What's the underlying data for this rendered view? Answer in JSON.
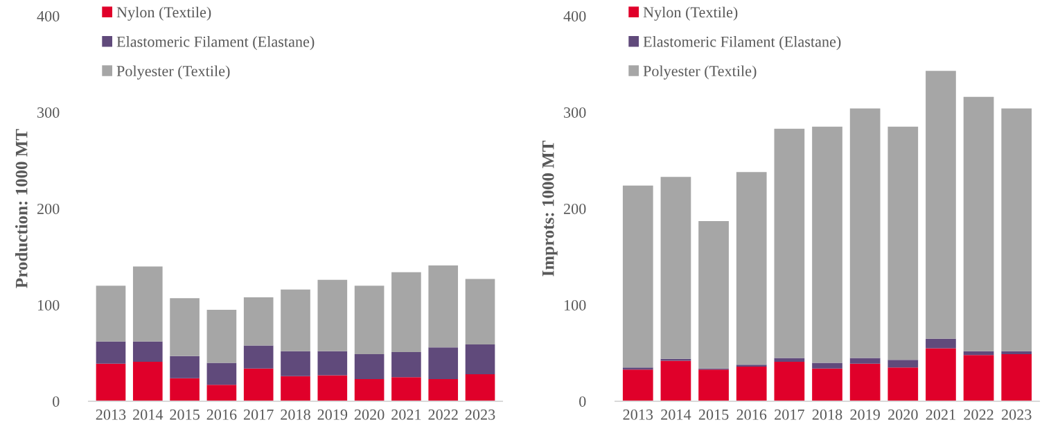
{
  "chart_data": [
    {
      "type": "bar",
      "stacked": true,
      "ylabel": "Production: 1000 MT",
      "categories": [
        "2013",
        "2014",
        "2015",
        "2016",
        "2017",
        "2018",
        "2019",
        "2020",
        "2021",
        "2022",
        "2023"
      ],
      "ylim": [
        0,
        400
      ],
      "yticks": [
        0,
        100,
        200,
        300,
        400
      ],
      "legend": "top left",
      "grid": false,
      "series": [
        {
          "name": "Nylon (Textile)",
          "color": "#e0002a",
          "values": [
            39,
            41,
            24,
            17,
            34,
            26,
            27,
            23,
            25,
            23,
            28
          ]
        },
        {
          "name": "Elastomeric Filament (Elastane)",
          "color": "#604a7b",
          "values": [
            23,
            21,
            23,
            23,
            24,
            26,
            25,
            26,
            26,
            33,
            31
          ]
        },
        {
          "name": "Polyester (Textile)",
          "color": "#a6a6a6",
          "values": [
            58,
            78,
            60,
            55,
            50,
            64,
            74,
            71,
            83,
            85,
            68
          ]
        }
      ]
    },
    {
      "type": "bar",
      "stacked": true,
      "ylabel": "Improts: 1000 MT",
      "categories": [
        "2013",
        "2014",
        "2015",
        "2016",
        "2017",
        "2018",
        "2019",
        "2020",
        "2021",
        "2022",
        "2023"
      ],
      "ylim": [
        0,
        400
      ],
      "yticks": [
        0,
        100,
        200,
        300,
        400
      ],
      "legend": "top left",
      "grid": false,
      "series": [
        {
          "name": "Nylon (Textile)",
          "color": "#e0002a",
          "values": [
            33,
            42,
            33,
            36,
            41,
            34,
            39,
            35,
            55,
            48,
            49
          ]
        },
        {
          "name": "Elastomeric Filament (Elastane)",
          "color": "#604a7b",
          "values": [
            2,
            2,
            1,
            2,
            4,
            6,
            6,
            8,
            10,
            4,
            3
          ]
        },
        {
          "name": "Polyester (Textile)",
          "color": "#a6a6a6",
          "values": [
            189,
            189,
            153,
            200,
            238,
            245,
            259,
            242,
            278,
            264,
            252
          ]
        }
      ]
    }
  ]
}
